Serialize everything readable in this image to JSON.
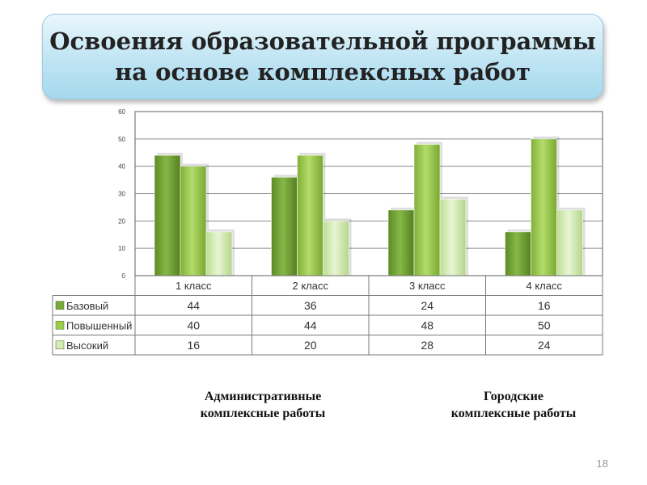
{
  "slide": {
    "title_lines": [
      "Освоения образовательной программы",
      "на основе комплексных работ"
    ],
    "caption_left": [
      "Административные",
      "комплексные работы"
    ],
    "caption_right": [
      "Городские",
      "комплексные работы"
    ],
    "slide_number": "18"
  },
  "chart_data": {
    "type": "bar",
    "categories": [
      "1 класс",
      "2 класс",
      "3 класс",
      "4 класс"
    ],
    "series": [
      {
        "name": "Базовый",
        "values": [
          44,
          36,
          24,
          16
        ],
        "color": "#79a83a"
      },
      {
        "name": "Повышенный",
        "values": [
          40,
          44,
          48,
          50
        ],
        "color": "#9ccc4e"
      },
      {
        "name": "Высокий",
        "values": [
          16,
          20,
          28,
          24
        ],
        "color": "#d6ecb4"
      }
    ],
    "ylim": [
      0,
      60
    ],
    "yticks": [
      "0",
      "10",
      "20",
      "30",
      "40",
      "50",
      "60"
    ],
    "grid": true,
    "legend": "table-left"
  }
}
